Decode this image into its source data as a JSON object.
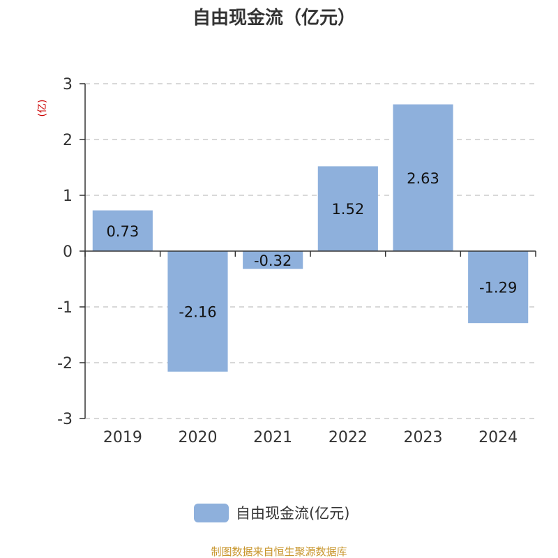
{
  "chart_data": {
    "type": "bar",
    "title": "自由现金流（亿元）",
    "ylabel": "(亿)",
    "categories": [
      "2019",
      "2020",
      "2021",
      "2022",
      "2023",
      "2024"
    ],
    "series": [
      {
        "name": "自由现金流(亿元)",
        "values": [
          0.73,
          -2.16,
          -0.32,
          1.52,
          2.63,
          -1.29
        ],
        "labels": [
          "0.73",
          "-2.16",
          "-0.32",
          "1.52",
          "2.63",
          "-1.29"
        ]
      }
    ],
    "ylim": [
      -3,
      3
    ],
    "yticks": [
      3,
      2,
      1,
      0,
      -1,
      -2,
      -3
    ],
    "grid": true,
    "legend": "bottom-center"
  },
  "source": "制图数据来自恒生聚源数据库",
  "colors": {
    "bar": "#8eb0dc",
    "axis": "#333333",
    "grid": "#cccccc",
    "unit_label": "#cc0000",
    "source": "#c8962d"
  }
}
